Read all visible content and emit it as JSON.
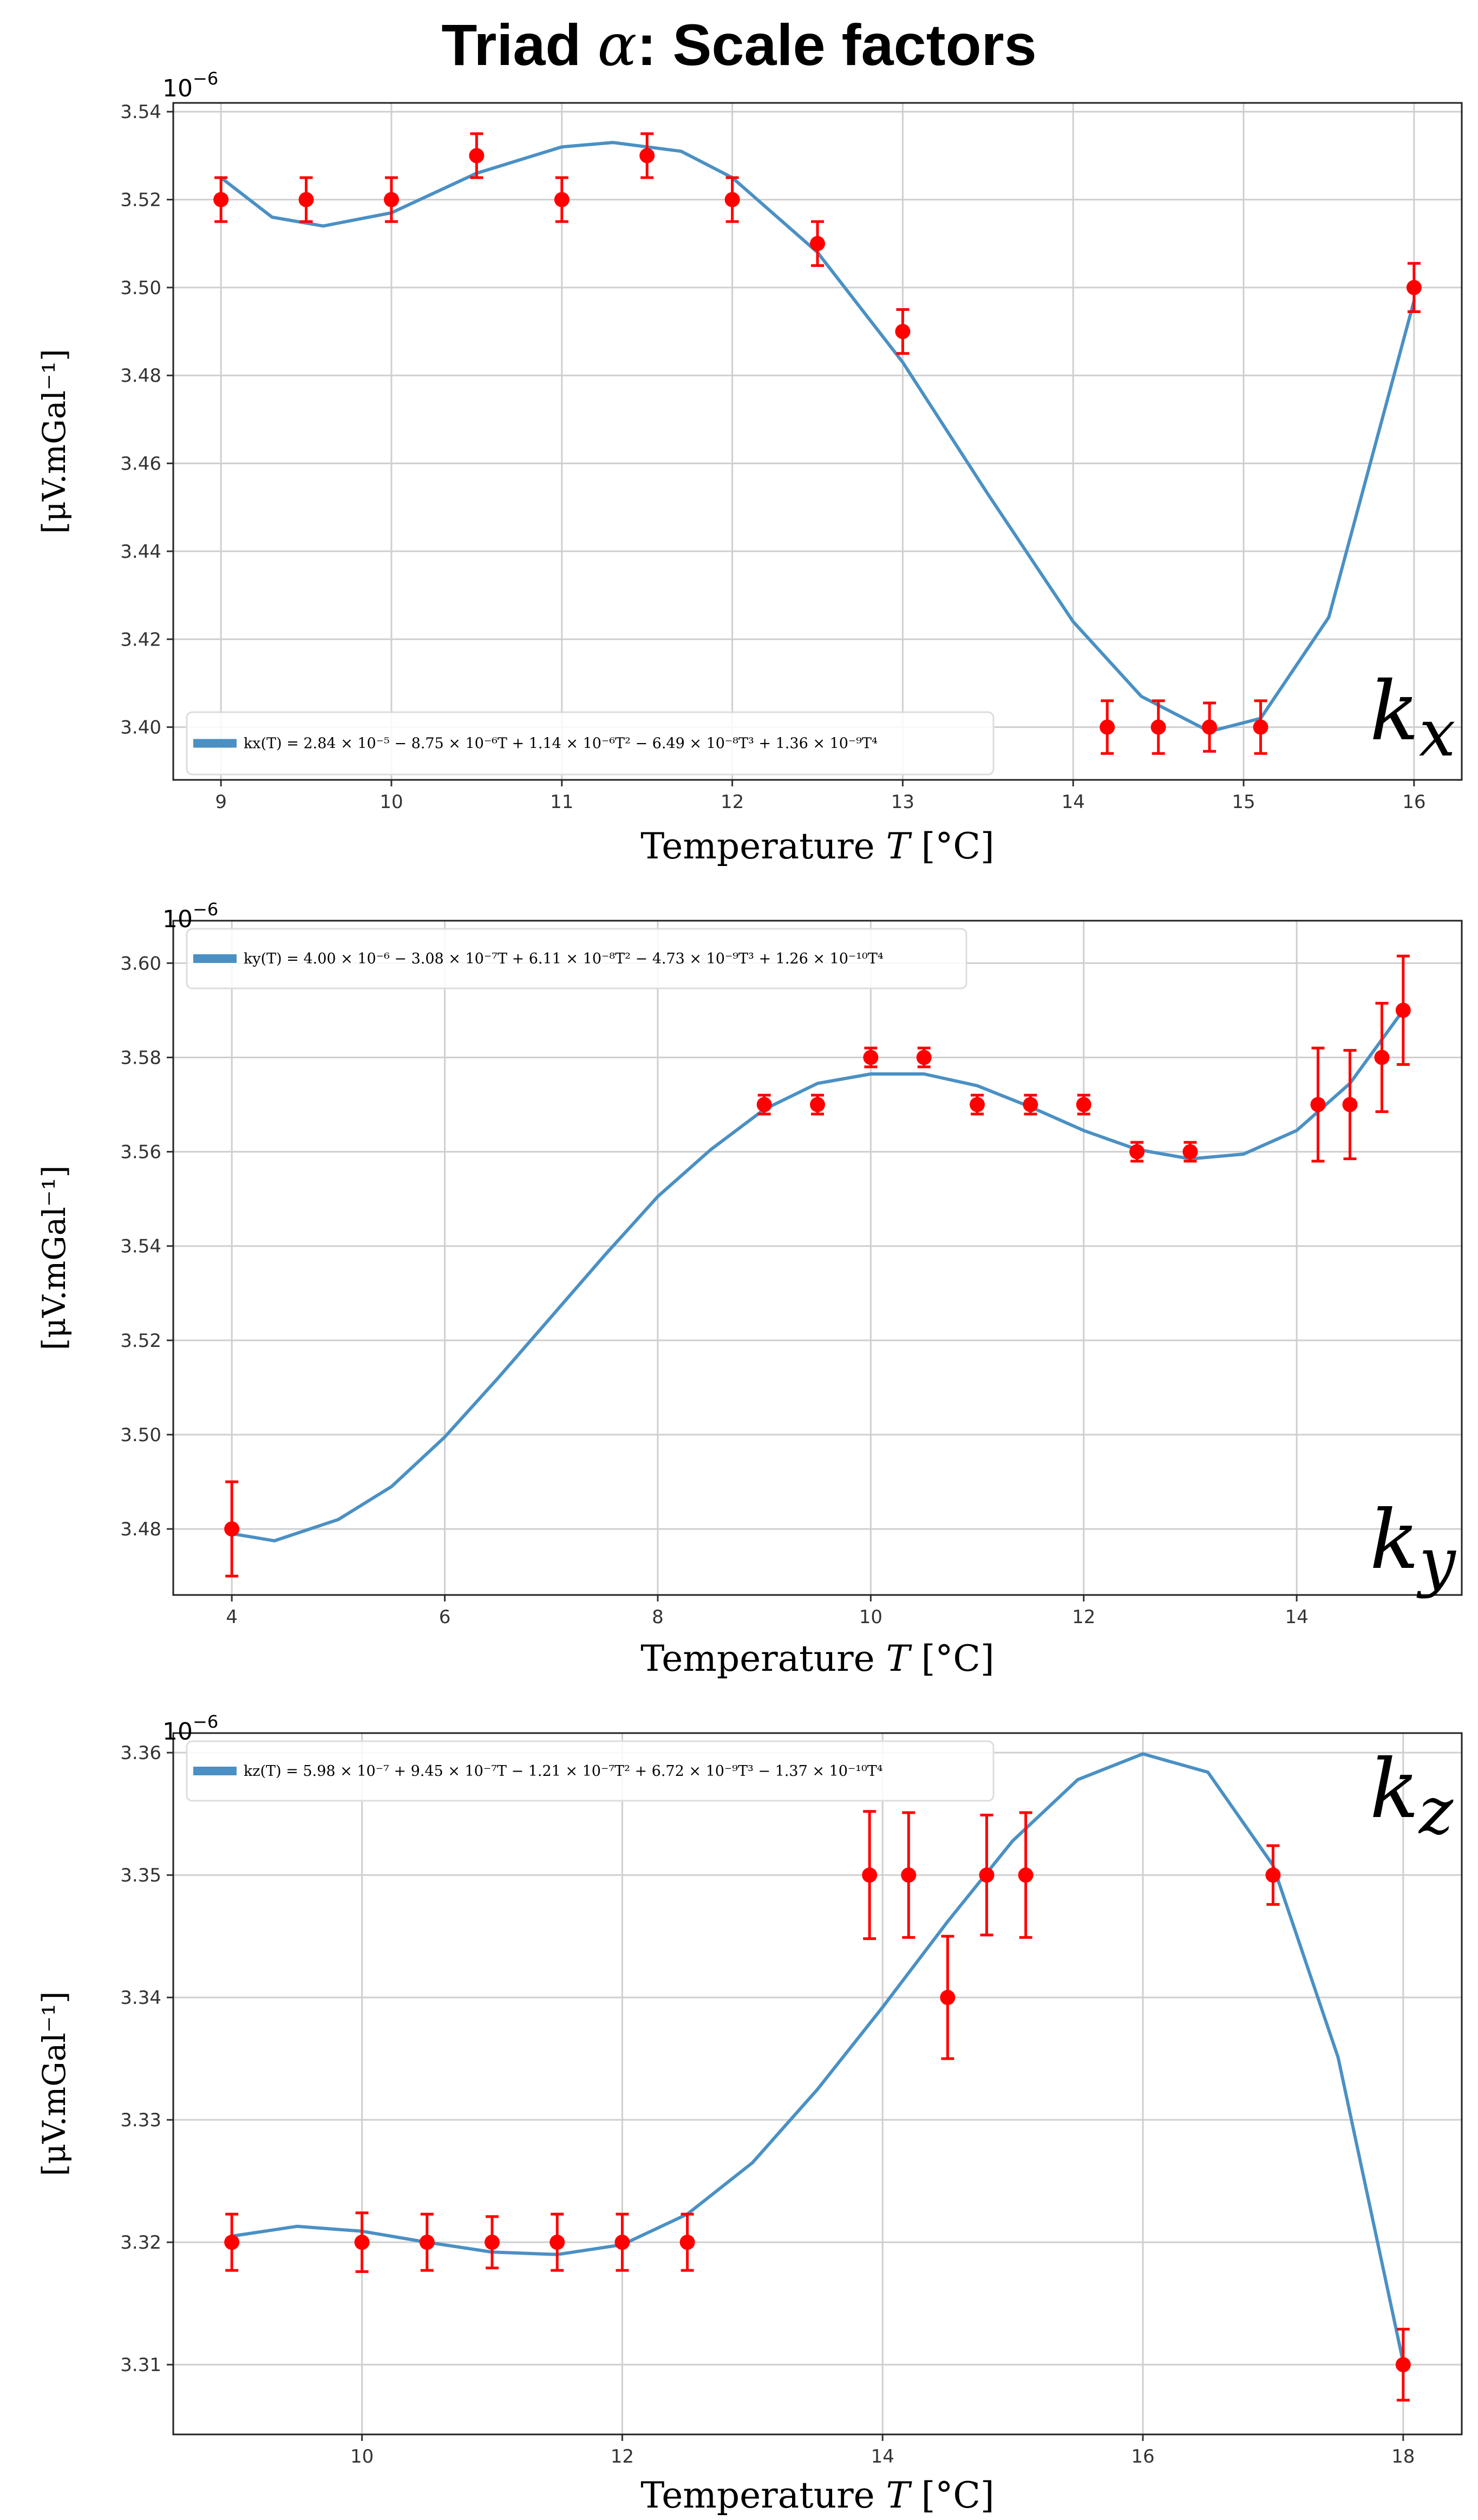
{
  "figure_title": {
    "prefix": "Triad ",
    "symbol": "α",
    "suffix": ": Scale factors"
  },
  "chart_data": [
    {
      "type": "scatter",
      "panel_label": {
        "base": "k",
        "sub": "x"
      },
      "multiplier": {
        "base": "10",
        "exp": "−6"
      },
      "xlabel": {
        "pre": "Temperature ",
        "var": "T",
        "post": " [°C]"
      },
      "ylabel": "[μV.mGal⁻¹]",
      "xlim": [
        8.72,
        16.28
      ],
      "ylim": [
        3.388,
        3.542
      ],
      "xticks": [
        9,
        10,
        11,
        12,
        13,
        14,
        15,
        16
      ],
      "yticks": [
        3.4,
        3.42,
        3.44,
        3.46,
        3.48,
        3.5,
        3.52,
        3.54
      ],
      "tick_decimals": 2,
      "grid": true,
      "legend_position": "lower-left",
      "series": [
        {
          "kind": "errorbar",
          "color": "#ff0000",
          "points": [
            {
              "x": 9.0,
              "y": 3.52,
              "err": 0.005
            },
            {
              "x": 9.5,
              "y": 3.52,
              "err": 0.005
            },
            {
              "x": 10.0,
              "y": 3.52,
              "err": 0.005
            },
            {
              "x": 10.5,
              "y": 3.53,
              "err": 0.005
            },
            {
              "x": 11.0,
              "y": 3.52,
              "err": 0.005
            },
            {
              "x": 11.5,
              "y": 3.53,
              "err": 0.005
            },
            {
              "x": 12.0,
              "y": 3.52,
              "err": 0.005
            },
            {
              "x": 12.5,
              "y": 3.51,
              "err": 0.005
            },
            {
              "x": 13.0,
              "y": 3.49,
              "err": 0.005
            },
            {
              "x": 14.2,
              "y": 3.4,
              "err": 0.006
            },
            {
              "x": 14.5,
              "y": 3.4,
              "err": 0.006
            },
            {
              "x": 14.8,
              "y": 3.4,
              "err": 0.0055
            },
            {
              "x": 15.1,
              "y": 3.4,
              "err": 0.006
            },
            {
              "x": 16.0,
              "y": 3.5,
              "err": 0.0055
            }
          ]
        },
        {
          "kind": "fit-curve",
          "color": "#4a90c4",
          "legend": "kx(T) = 2.84 × 10⁻⁵ − 8.75 × 10⁻⁶T + 1.14 × 10⁻⁶T² − 6.49 × 10⁻⁸T³ + 1.36 × 10⁻⁹T⁴",
          "points": [
            {
              "x": 9.0,
              "y": 3.525
            },
            {
              "x": 9.3,
              "y": 3.516
            },
            {
              "x": 9.6,
              "y": 3.514
            },
            {
              "x": 10.0,
              "y": 3.517
            },
            {
              "x": 10.5,
              "y": 3.526
            },
            {
              "x": 11.0,
              "y": 3.532
            },
            {
              "x": 11.3,
              "y": 3.533
            },
            {
              "x": 11.7,
              "y": 3.531
            },
            {
              "x": 12.0,
              "y": 3.525
            },
            {
              "x": 12.5,
              "y": 3.508
            },
            {
              "x": 13.0,
              "y": 3.483
            },
            {
              "x": 13.5,
              "y": 3.453
            },
            {
              "x": 14.0,
              "y": 3.424
            },
            {
              "x": 14.4,
              "y": 3.407
            },
            {
              "x": 14.8,
              "y": 3.399
            },
            {
              "x": 15.1,
              "y": 3.402
            },
            {
              "x": 15.5,
              "y": 3.425
            },
            {
              "x": 16.0,
              "y": 3.497
            }
          ]
        }
      ]
    },
    {
      "type": "scatter",
      "panel_label": {
        "base": "k",
        "sub": "y"
      },
      "multiplier": {
        "base": "10",
        "exp": "−6"
      },
      "xlabel": {
        "pre": "Temperature ",
        "var": "T",
        "post": " [°C]"
      },
      "ylabel": "[μV.mGal⁻¹]",
      "xlim": [
        3.45,
        15.55
      ],
      "ylim": [
        3.466,
        3.609
      ],
      "xticks": [
        4,
        6,
        8,
        10,
        12,
        14
      ],
      "yticks": [
        3.48,
        3.5,
        3.52,
        3.54,
        3.56,
        3.58,
        3.6
      ],
      "tick_decimals": 2,
      "grid": true,
      "legend_position": "top-left",
      "series": [
        {
          "kind": "errorbar",
          "color": "#ff0000",
          "points": [
            {
              "x": 4.0,
              "y": 3.48,
              "err": 0.01
            },
            {
              "x": 9.0,
              "y": 3.57,
              "err": 0.002
            },
            {
              "x": 9.5,
              "y": 3.57,
              "err": 0.002
            },
            {
              "x": 10.0,
              "y": 3.58,
              "err": 0.002
            },
            {
              "x": 10.5,
              "y": 3.58,
              "err": 0.002
            },
            {
              "x": 11.0,
              "y": 3.57,
              "err": 0.002
            },
            {
              "x": 11.5,
              "y": 3.57,
              "err": 0.002
            },
            {
              "x": 12.0,
              "y": 3.57,
              "err": 0.002
            },
            {
              "x": 12.5,
              "y": 3.56,
              "err": 0.002
            },
            {
              "x": 13.0,
              "y": 3.56,
              "err": 0.002
            },
            {
              "x": 14.2,
              "y": 3.57,
              "err": 0.012
            },
            {
              "x": 14.5,
              "y": 3.57,
              "err": 0.0115
            },
            {
              "x": 14.8,
              "y": 3.58,
              "err": 0.0115
            },
            {
              "x": 15.0,
              "y": 3.59,
              "err": 0.0115
            }
          ]
        },
        {
          "kind": "fit-curve",
          "color": "#4a90c4",
          "legend": "ky(T) = 4.00 × 10⁻⁶ − 3.08 × 10⁻⁷T + 6.11 × 10⁻⁸T² − 4.73 × 10⁻⁹T³ + 1.26 × 10⁻¹⁰T⁴",
          "points": [
            {
              "x": 4.0,
              "y": 3.479
            },
            {
              "x": 4.4,
              "y": 3.4775
            },
            {
              "x": 5.0,
              "y": 3.482
            },
            {
              "x": 5.5,
              "y": 3.489
            },
            {
              "x": 6.0,
              "y": 3.4995
            },
            {
              "x": 6.5,
              "y": 3.512
            },
            {
              "x": 7.0,
              "y": 3.525
            },
            {
              "x": 7.5,
              "y": 3.538
            },
            {
              "x": 8.0,
              "y": 3.5505
            },
            {
              "x": 8.5,
              "y": 3.5605
            },
            {
              "x": 9.0,
              "y": 3.569
            },
            {
              "x": 9.5,
              "y": 3.5745
            },
            {
              "x": 10.0,
              "y": 3.5765
            },
            {
              "x": 10.5,
              "y": 3.5765
            },
            {
              "x": 11.0,
              "y": 3.574
            },
            {
              "x": 11.5,
              "y": 3.5695
            },
            {
              "x": 12.0,
              "y": 3.5645
            },
            {
              "x": 12.5,
              "y": 3.5605
            },
            {
              "x": 13.0,
              "y": 3.5585
            },
            {
              "x": 13.5,
              "y": 3.5595
            },
            {
              "x": 14.0,
              "y": 3.5645
            },
            {
              "x": 14.5,
              "y": 3.5745
            },
            {
              "x": 15.0,
              "y": 3.59
            }
          ]
        }
      ]
    },
    {
      "type": "scatter",
      "panel_label": {
        "base": "k",
        "sub": "z"
      },
      "multiplier": {
        "base": "10",
        "exp": "−6"
      },
      "xlabel": {
        "pre": "Temperature ",
        "var": "T",
        "post": " [°C]"
      },
      "ylabel": "[μV.mGal⁻¹]",
      "xlim": [
        8.55,
        18.45
      ],
      "ylim": [
        3.3043,
        3.3616
      ],
      "xticks": [
        10,
        12,
        14,
        16,
        18
      ],
      "yticks": [
        3.31,
        3.32,
        3.33,
        3.34,
        3.35,
        3.36
      ],
      "tick_decimals": 2,
      "grid": true,
      "legend_position": "top-left",
      "series": [
        {
          "kind": "errorbar",
          "color": "#ff0000",
          "points": [
            {
              "x": 9.0,
              "y": 3.32,
              "err": 0.0023
            },
            {
              "x": 10.0,
              "y": 3.32,
              "err": 0.0024
            },
            {
              "x": 10.5,
              "y": 3.32,
              "err": 0.0023
            },
            {
              "x": 11.0,
              "y": 3.32,
              "err": 0.0021
            },
            {
              "x": 11.5,
              "y": 3.32,
              "err": 0.0023
            },
            {
              "x": 12.0,
              "y": 3.32,
              "err": 0.0023
            },
            {
              "x": 12.5,
              "y": 3.32,
              "err": 0.0023
            },
            {
              "x": 13.9,
              "y": 3.35,
              "err": 0.0052
            },
            {
              "x": 14.2,
              "y": 3.35,
              "err": 0.0051
            },
            {
              "x": 14.5,
              "y": 3.34,
              "err": 0.005
            },
            {
              "x": 14.8,
              "y": 3.35,
              "err": 0.0049
            },
            {
              "x": 15.1,
              "y": 3.35,
              "err": 0.0051
            },
            {
              "x": 17.0,
              "y": 3.35,
              "err": 0.0024
            },
            {
              "x": 18.0,
              "y": 3.31,
              "err": 0.0029
            }
          ]
        },
        {
          "kind": "fit-curve",
          "color": "#4a90c4",
          "legend": "kz(T) = 5.98 × 10⁻⁷ + 9.45 × 10⁻⁷T − 1.21 × 10⁻⁷T² + 6.72 × 10⁻⁹T³ − 1.37 × 10⁻¹⁰T⁴",
          "points": [
            {
              "x": 9.0,
              "y": 3.3205
            },
            {
              "x": 9.5,
              "y": 3.3213
            },
            {
              "x": 10.0,
              "y": 3.3209
            },
            {
              "x": 10.5,
              "y": 3.32
            },
            {
              "x": 11.0,
              "y": 3.3192
            },
            {
              "x": 11.5,
              "y": 3.319
            },
            {
              "x": 12.0,
              "y": 3.3198
            },
            {
              "x": 12.5,
              "y": 3.3223
            },
            {
              "x": 13.0,
              "y": 3.3265
            },
            {
              "x": 13.5,
              "y": 3.3325
            },
            {
              "x": 14.0,
              "y": 3.3392
            },
            {
              "x": 14.5,
              "y": 3.3462
            },
            {
              "x": 15.0,
              "y": 3.3528
            },
            {
              "x": 15.5,
              "y": 3.3578
            },
            {
              "x": 16.0,
              "y": 3.3599
            },
            {
              "x": 16.5,
              "y": 3.3584
            },
            {
              "x": 17.0,
              "y": 3.3508
            },
            {
              "x": 17.5,
              "y": 3.3351
            },
            {
              "x": 18.0,
              "y": 3.3102
            }
          ]
        }
      ]
    }
  ]
}
